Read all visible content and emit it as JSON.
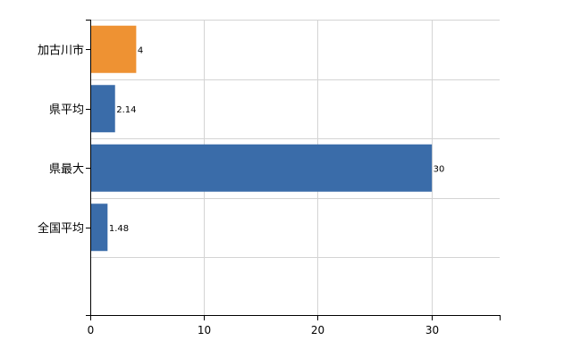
{
  "chart_data": {
    "type": "bar",
    "orientation": "horizontal",
    "categories": [
      "加古川市",
      "県平均",
      "県最大",
      "全国平均"
    ],
    "values": [
      4,
      2.14,
      30,
      1.48
    ],
    "value_labels": [
      "4",
      "2.14",
      "30",
      "1.48"
    ],
    "bar_colors": [
      "#ee9233",
      "#3a6ca9",
      "#3a6ca9",
      "#3a6ca9"
    ],
    "xlim": [
      0,
      36
    ],
    "xticks": [
      0,
      10,
      20,
      30
    ],
    "xtick_labels": [
      "0",
      "10",
      "20",
      "30"
    ],
    "grid": true,
    "title": "",
    "xlabel": "",
    "ylabel": ""
  }
}
